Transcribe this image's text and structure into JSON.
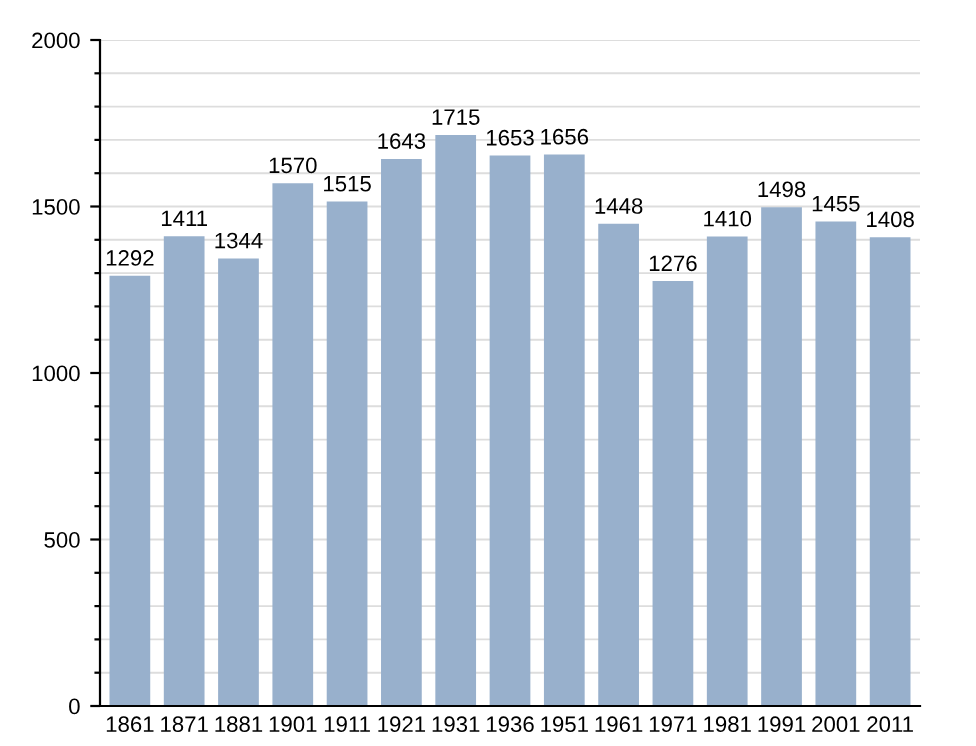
{
  "chart_data": {
    "type": "bar",
    "categories": [
      "1861",
      "1871",
      "1881",
      "1901",
      "1911",
      "1921",
      "1931",
      "1936",
      "1951",
      "1961",
      "1971",
      "1981",
      "1991",
      "2001",
      "2011"
    ],
    "values": [
      1292,
      1411,
      1344,
      1570,
      1515,
      1643,
      1715,
      1653,
      1656,
      1448,
      1276,
      1410,
      1498,
      1455,
      1408
    ],
    "color": "#98b0cc",
    "data_labels": true,
    "ylim": [
      0,
      2000
    ],
    "yticks": [
      0,
      {
        "value": 100,
        "label": null
      },
      {
        "value": 200,
        "label": null
      },
      {
        "value": 300,
        "label": null
      },
      {
        "value": 400,
        "label": null
      },
      500,
      {
        "value": 600,
        "label": null
      },
      {
        "value": 700,
        "label": null
      },
      {
        "value": 800,
        "label": null
      },
      {
        "value": 900,
        "label": null
      },
      1000,
      {
        "value": 1100,
        "label": null
      },
      {
        "value": 1200,
        "label": null
      },
      {
        "value": 1300,
        "label": null
      },
      {
        "value": 1400,
        "label": null
      },
      1500,
      {
        "value": 1600,
        "label": null
      },
      {
        "value": 1700,
        "label": null
      },
      {
        "value": 1800,
        "label": null
      },
      {
        "value": 1900,
        "label": null
      },
      2000
    ],
    "grid": "y"
  }
}
